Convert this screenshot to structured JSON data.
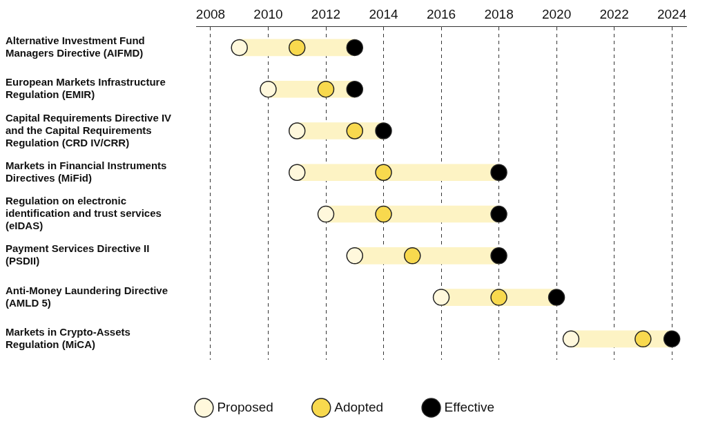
{
  "chart_data": {
    "type": "timeline",
    "categories": [
      "Alternative Investment Fund Managers Directive (AIFMD)",
      "European Markets Infrastructure Regulation (EMIR)",
      "Capital Requirements Directive IV and the Capital Requirements Regulation (CRD IV/CRR)",
      "Markets in Financial Instruments Directives (MiFid)",
      "Regulation on electronic identification and trust services (eIDAS)",
      "Payment Services Directive II (PSDII)",
      "Anti-Money Laundering Directive (AMLD 5)",
      "Markets in Crypto-Assets Regulation (MiCA)"
    ],
    "series": [
      {
        "name": "Proposed",
        "color": "#fff8dc",
        "values": [
          2009,
          2010,
          2011,
          2011,
          2012,
          2013,
          2016,
          2020.5
        ]
      },
      {
        "name": "Adopted",
        "color": "#f8d94e",
        "values": [
          2011,
          2012,
          2013,
          2014,
          2014,
          2015,
          2018,
          2023
        ]
      },
      {
        "name": "Effective",
        "color": "#000000",
        "values": [
          2013,
          2013,
          2014,
          2018,
          2018,
          2018,
          2020,
          2024
        ]
      }
    ],
    "xlim": [
      2007.5,
      2024.5
    ],
    "xticks": [
      2008,
      2010,
      2012,
      2014,
      2016,
      2018,
      2020,
      2022,
      2024
    ],
    "grid": true,
    "legend": "bottom"
  }
}
